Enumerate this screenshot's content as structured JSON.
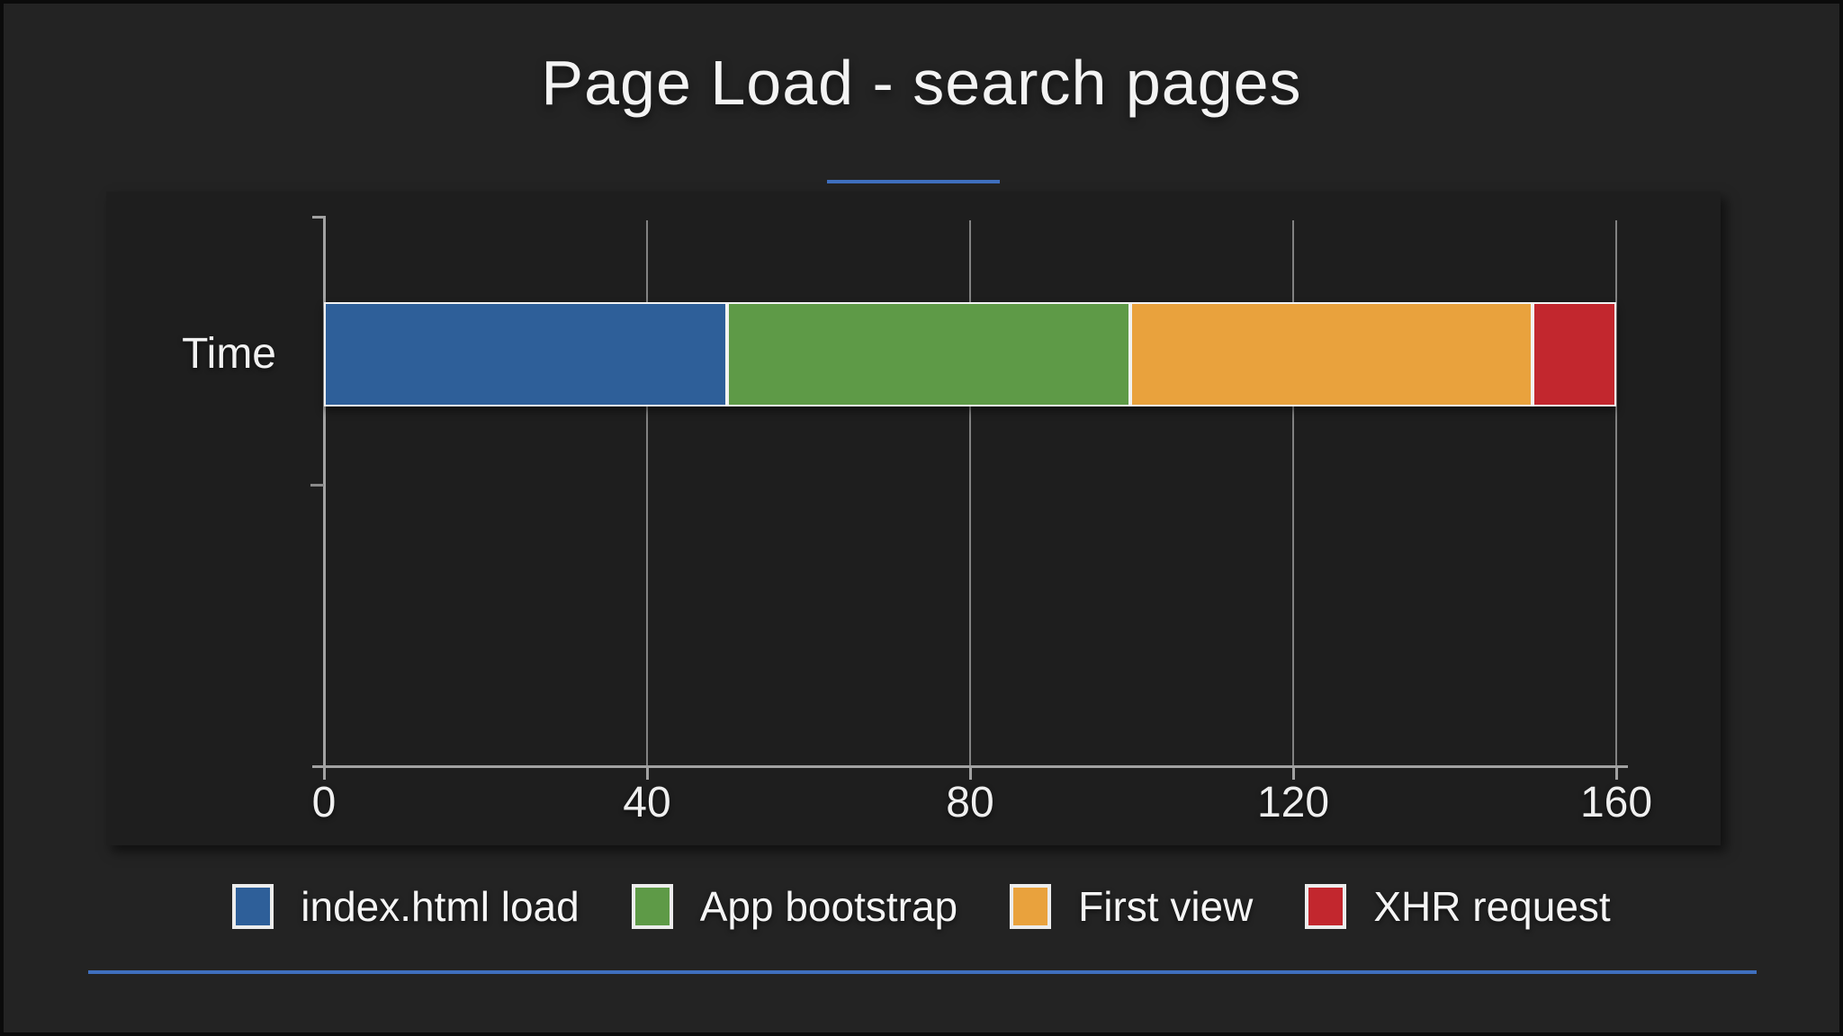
{
  "page": {
    "title": "Page Load - search pages"
  },
  "accent_color": "#3f6fbe",
  "chart_data": {
    "type": "bar",
    "orientation": "horizontal",
    "stacked": true,
    "title": "Page Load - search pages",
    "categories": [
      "Time"
    ],
    "series": [
      {
        "name": "index.html load",
        "values": [
          50
        ],
        "color": "#2e5f99"
      },
      {
        "name": "App bootstrap",
        "values": [
          50
        ],
        "color": "#5e9a47"
      },
      {
        "name": "First view",
        "values": [
          50
        ],
        "color": "#e9a23d"
      },
      {
        "name": "XHR request",
        "values": [
          10
        ],
        "color": "#c2272e"
      }
    ],
    "xlabel": "",
    "ylabel": "",
    "xlim": [
      0,
      160
    ],
    "xticks": [
      0,
      40,
      80,
      120,
      160
    ],
    "grid": true,
    "legend_position": "bottom",
    "background": "#232323",
    "panel_background": "#1e1e1e"
  }
}
